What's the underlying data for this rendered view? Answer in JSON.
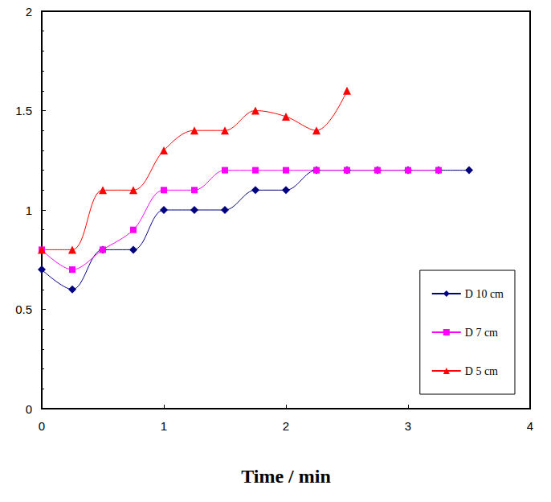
{
  "chart_data": {
    "type": "line",
    "x_label": "Time / min",
    "xlim": [
      0,
      4
    ],
    "xticks": [
      0,
      1,
      2,
      3,
      4
    ],
    "ylim": [
      0,
      2
    ],
    "yticks": [
      0,
      0.5,
      1,
      1.5,
      2
    ],
    "grid": false,
    "legend": "lower right",
    "series": [
      {
        "name": "D 10 cm",
        "color": "#000080",
        "marker": "diamond",
        "line_style": "solid",
        "x": [
          0,
          0.25,
          0.5,
          0.75,
          1,
          1.25,
          1.5,
          1.75,
          2,
          2.25,
          2.5,
          2.75,
          3,
          3.25,
          3.5
        ],
        "values": [
          0.7,
          0.6,
          0.8,
          0.8,
          1.0,
          1.0,
          1.0,
          1.1,
          1.1,
          1.2,
          1.2,
          1.2,
          1.2,
          1.2,
          1.2
        ]
      },
      {
        "name": "D 7 cm",
        "color": "#ff00ff",
        "marker": "square",
        "line_style": "solid",
        "x": [
          0,
          0.25,
          0.5,
          0.75,
          1,
          1.25,
          1.5,
          1.75,
          2,
          2.25,
          2.5,
          2.75,
          3,
          3.25
        ],
        "values": [
          0.8,
          0.7,
          0.8,
          0.9,
          1.1,
          1.1,
          1.2,
          1.2,
          1.2,
          1.2,
          1.2,
          1.2,
          1.2,
          1.2
        ]
      },
      {
        "name": "D 5 cm",
        "color": "#ff0000",
        "marker": "triangle",
        "line_style": "solid",
        "x": [
          0,
          0.25,
          0.5,
          0.75,
          1,
          1.25,
          1.5,
          1.75,
          2,
          2.25,
          2.5
        ],
        "values": [
          0.8,
          0.8,
          1.1,
          1.1,
          1.3,
          1.4,
          1.4,
          1.5,
          1.47,
          1.4,
          1.6
        ]
      }
    ]
  }
}
